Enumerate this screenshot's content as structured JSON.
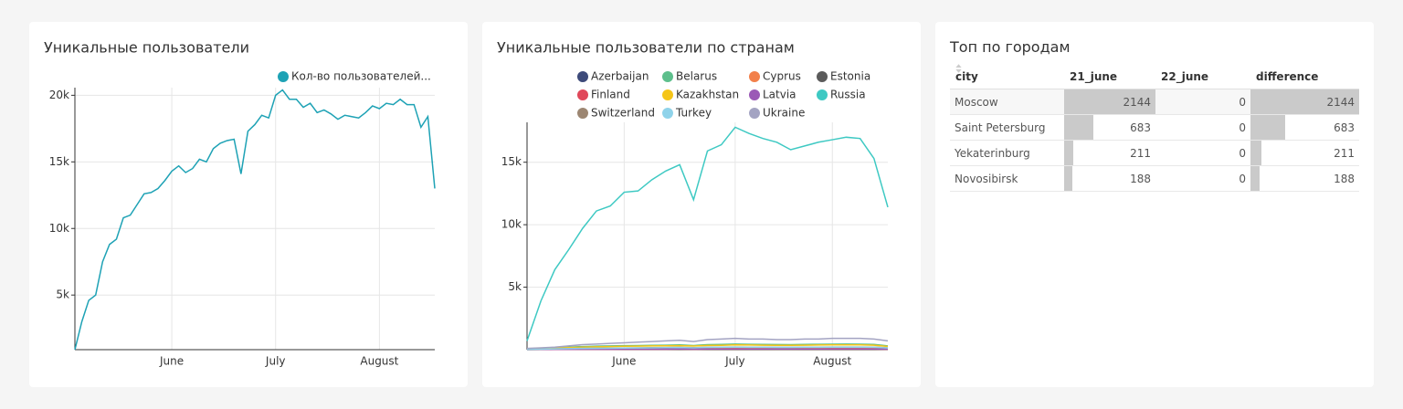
{
  "chart_data": [
    {
      "type": "line",
      "title": "Уникальные пользователи",
      "legend": "top-right",
      "grid": true,
      "categories": [
        null,
        null,
        null,
        null,
        null,
        null,
        null,
        null,
        null,
        null,
        null,
        null,
        null,
        null,
        "June",
        null,
        null,
        null,
        null,
        null,
        null,
        null,
        null,
        null,
        null,
        null,
        null,
        null,
        null,
        "July",
        null,
        null,
        null,
        null,
        null,
        null,
        null,
        null,
        null,
        null,
        null,
        null,
        null,
        null,
        "August",
        null,
        null,
        null,
        null,
        null,
        null,
        null,
        null
      ],
      "ylim": [
        900,
        20300
      ],
      "yticks": [
        {
          "value": 5000,
          "label": "5k"
        },
        {
          "value": 10000,
          "label": "10k"
        },
        {
          "value": 15000,
          "label": "15k"
        },
        {
          "value": 20000,
          "label": "20k"
        }
      ],
      "series": [
        {
          "name": "Кол-во пользователей...",
          "color": "#1ea2b5",
          "values": [
            900,
            3000,
            4600,
            5000,
            7500,
            8800,
            9200,
            10800,
            11000,
            11800,
            12600,
            12700,
            13000,
            13600,
            14300,
            14700,
            14200,
            14500,
            15200,
            15000,
            16000,
            16400,
            16600,
            16700,
            14100,
            17300,
            17800,
            18500,
            18300,
            20000,
            20400,
            19700,
            19700,
            19100,
            19400,
            18700,
            18900,
            18600,
            18200,
            18500,
            18400,
            18300,
            18700,
            19200,
            19000,
            19400,
            19300,
            19700,
            19300,
            19300,
            17600,
            18400,
            13000
          ]
        }
      ]
    },
    {
      "type": "line",
      "title": "Уникальные пользователи по странам",
      "legend": "top",
      "grid": true,
      "categories": [
        null,
        null,
        null,
        null,
        null,
        null,
        null,
        "June",
        null,
        null,
        null,
        null,
        null,
        null,
        null,
        "July",
        null,
        null,
        null,
        null,
        null,
        null,
        "August",
        null,
        null,
        null,
        null
      ],
      "ylim": [
        0,
        17900
      ],
      "yticks": [
        {
          "value": 5000,
          "label": "5k"
        },
        {
          "value": 10000,
          "label": "10k"
        },
        {
          "value": 15000,
          "label": "15k"
        }
      ],
      "series": [
        {
          "name": "Azerbaijan",
          "color": "#3d4a7a",
          "values": [
            10,
            20,
            30,
            40,
            50,
            55,
            60,
            65,
            70,
            75,
            80,
            85,
            75,
            90,
            95,
            100,
            95,
            95,
            90,
            90,
            95,
            95,
            100,
            100,
            100,
            95,
            70
          ]
        },
        {
          "name": "Belarus",
          "color": "#5dbf8c",
          "values": [
            50,
            100,
            150,
            200,
            250,
            280,
            300,
            320,
            330,
            350,
            360,
            380,
            330,
            400,
            420,
            450,
            430,
            420,
            410,
            400,
            420,
            430,
            440,
            450,
            440,
            420,
            300
          ]
        },
        {
          "name": "Cyprus",
          "color": "#f2804b",
          "values": [
            20,
            30,
            40,
            50,
            60,
            65,
            70,
            75,
            80,
            85,
            90,
            95,
            85,
            100,
            105,
            110,
            105,
            105,
            100,
            100,
            105,
            105,
            110,
            110,
            110,
            105,
            80
          ]
        },
        {
          "name": "Estonia",
          "color": "#5b5b5b",
          "values": [
            10,
            15,
            20,
            25,
            30,
            32,
            35,
            38,
            40,
            42,
            45,
            48,
            42,
            50,
            52,
            55,
            52,
            52,
            50,
            50,
            52,
            52,
            55,
            55,
            55,
            52,
            40
          ]
        },
        {
          "name": "Finland",
          "color": "#e0485a",
          "values": [
            5,
            10,
            15,
            20,
            25,
            28,
            30,
            32,
            35,
            38,
            40,
            42,
            38,
            45,
            48,
            50,
            48,
            48,
            45,
            45,
            48,
            48,
            50,
            50,
            50,
            48,
            35
          ]
        },
        {
          "name": "Kazakhstan",
          "color": "#f5c518",
          "values": [
            50,
            80,
            120,
            160,
            200,
            230,
            250,
            270,
            280,
            300,
            310,
            320,
            290,
            340,
            350,
            380,
            370,
            360,
            350,
            350,
            360,
            370,
            380,
            380,
            380,
            360,
            260
          ]
        },
        {
          "name": "Latvia",
          "color": "#9b59b6",
          "values": [
            15,
            20,
            25,
            30,
            35,
            37,
            40,
            43,
            45,
            47,
            50,
            53,
            47,
            55,
            57,
            60,
            57,
            57,
            55,
            55,
            57,
            57,
            60,
            60,
            60,
            57,
            45
          ]
        },
        {
          "name": "Russia",
          "color": "#3ec9c3",
          "values": [
            700,
            3900,
            6400,
            8000,
            9700,
            11100,
            11500,
            12600,
            12700,
            13600,
            14300,
            14800,
            12000,
            15900,
            16400,
            17800,
            17300,
            16900,
            16600,
            16000,
            16300,
            16600,
            16800,
            17000,
            16900,
            15300,
            11400
          ]
        },
        {
          "name": "Switzerland",
          "color": "#9c8672",
          "values": [
            30,
            50,
            70,
            90,
            110,
            120,
            130,
            140,
            150,
            160,
            170,
            180,
            160,
            190,
            200,
            210,
            200,
            200,
            190,
            190,
            200,
            200,
            210,
            210,
            210,
            200,
            150
          ]
        },
        {
          "name": "Turkey",
          "color": "#8fd3ea",
          "values": [
            20,
            40,
            60,
            80,
            100,
            110,
            120,
            130,
            140,
            150,
            160,
            170,
            150,
            180,
            190,
            200,
            190,
            190,
            180,
            180,
            190,
            190,
            200,
            200,
            200,
            190,
            140
          ]
        },
        {
          "name": "Ukraine",
          "color": "#a3a3c2",
          "values": [
            100,
            150,
            200,
            300,
            400,
            450,
            500,
            550,
            600,
            650,
            700,
            750,
            650,
            800,
            850,
            900,
            850,
            850,
            800,
            800,
            850,
            850,
            900,
            900,
            900,
            850,
            700
          ]
        }
      ]
    }
  ],
  "table": {
    "title": "Топ по городам",
    "columns": [
      "city",
      "21_june",
      "22_june",
      "difference"
    ],
    "rows": [
      [
        "Moscow",
        2144,
        0,
        2144
      ],
      [
        "Saint Petersburg",
        683,
        0,
        683
      ],
      [
        "Yekaterinburg",
        211,
        0,
        211
      ],
      [
        "Novosibirsk",
        188,
        0,
        188
      ]
    ]
  }
}
